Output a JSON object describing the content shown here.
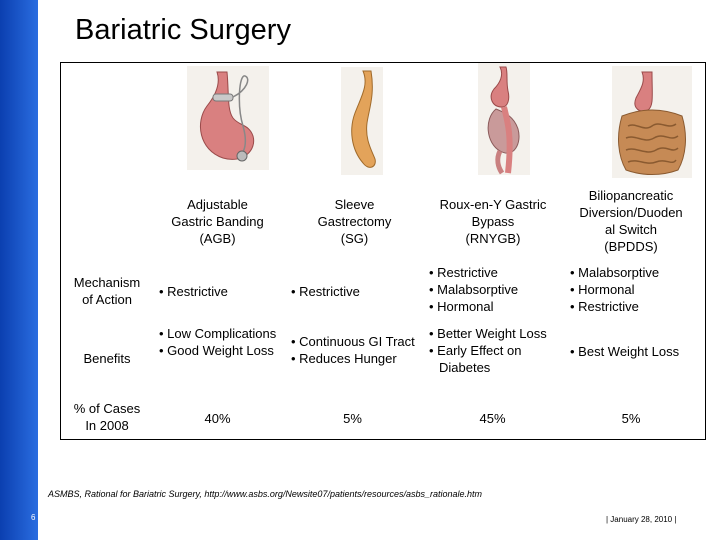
{
  "title": "Bariatric Surgery",
  "columns": [
    {
      "name": "Adjustable Gastric Banding (AGB)",
      "lines": [
        "Adjustable",
        "Gastric Banding",
        "(AGB)"
      ]
    },
    {
      "name": "Sleeve Gastrectomy (SG)",
      "lines": [
        "Sleeve",
        "Gastrectomy",
        "(SG)"
      ]
    },
    {
      "name": "Roux-en-Y Gastric Bypass (RNYGB)",
      "lines": [
        "Roux-en-Y Gastric",
        "Bypass",
        "(RNYGB)"
      ]
    },
    {
      "name": "Biliopancreatic Diversion/Duodenal Switch (BPDDS)",
      "lines": [
        "Biliopancreatic",
        "Diversion/Duoden",
        "al Switch",
        "(BPDDS)"
      ]
    }
  ],
  "row_labels": {
    "mechanism": [
      "Mechanism",
      "of Action"
    ],
    "benefits": [
      "Benefits"
    ],
    "cases": [
      "% of Cases",
      "In 2008"
    ]
  },
  "mechanism": [
    [
      "• Restrictive"
    ],
    [
      "• Restrictive"
    ],
    [
      "• Restrictive",
      "• Malabsorptive",
      "• Hormonal"
    ],
    [
      "• Malabsorptive",
      "• Hormonal",
      "• Restrictive"
    ]
  ],
  "benefits": [
    [
      "• Low Complications",
      "• Good Weight Loss"
    ],
    [
      "• Continuous GI Tract",
      "• Reduces Hunger"
    ],
    [
      "• Better Weight Loss",
      "• Early Effect on Diabetes"
    ],
    [
      "• Best Weight Loss"
    ]
  ],
  "cases": [
    "40%",
    "5%",
    "45%",
    "5%"
  ],
  "footer": "ASMBS, Rational for Bariatric Surgery, http://www.asbs.org/Newsite07/patients/resources/asbs_rationale.htm",
  "page_number": "6",
  "date": "|   January 28, 2010   |"
}
